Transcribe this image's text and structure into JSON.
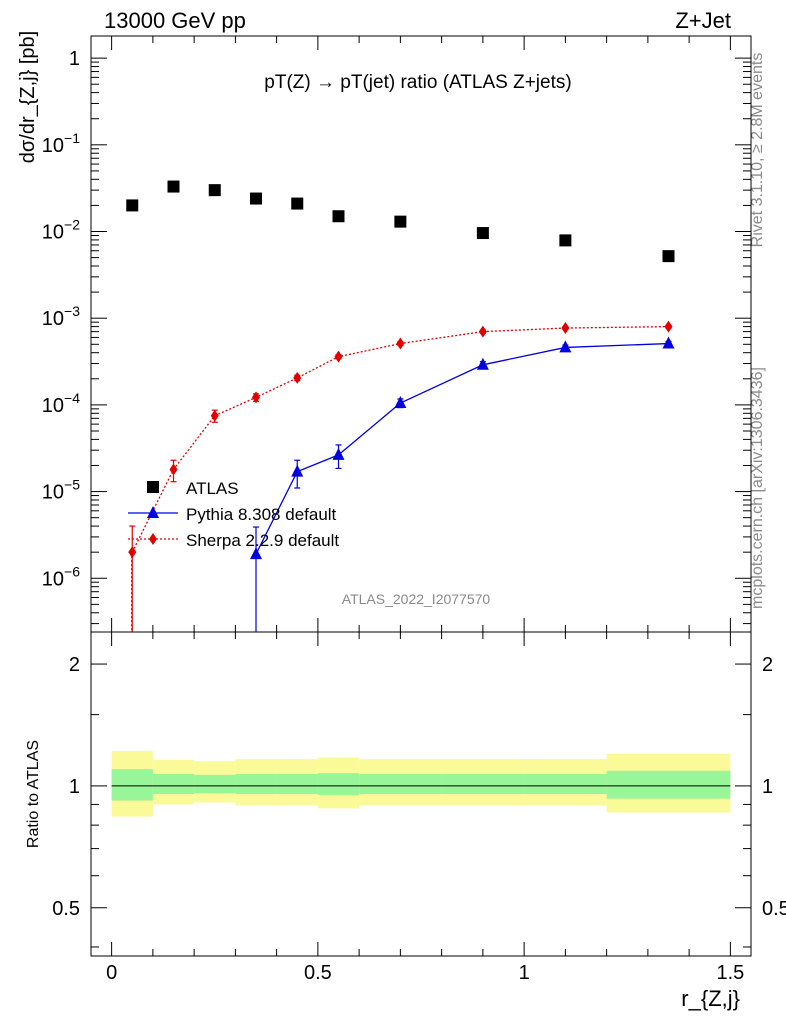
{
  "header": {
    "left": "13000 GeV pp",
    "right": "Z+Jet"
  },
  "side": {
    "rivet": "Rivet 3.1.10, ≥ 2.8M events",
    "mcplots": "mcplots.cern.ch [arXiv:1306.3436]"
  },
  "chart_data": {
    "type": "scatter",
    "title": "pT(Z) → pT(jet) ratio (ATLAS Z+jets)",
    "watermark": "ATLAS_2022_I2077570",
    "xlabel": "r_{Z,j}",
    "ylabel": "dσ/dr_{Z,j} [pb]",
    "ratio_ylabel": "Ratio to ATLAS",
    "xlim": [
      -0.05,
      1.55
    ],
    "ylim": [
      2.4e-07,
      1.8
    ],
    "yscale": "log",
    "ratio_ylim": [
      0.38,
      2.4
    ],
    "ratio_yscale": "log",
    "x_ticks": [
      "0",
      "0.5",
      "1",
      "1.5"
    ],
    "y_ticks": [
      "1",
      "10^-1",
      "10^-2",
      "10^-3",
      "10^-4",
      "10^-5",
      "10^-6"
    ],
    "ratio_ticks": [
      "2",
      "1",
      "0.5"
    ],
    "legend_position": "bottom-left",
    "series": [
      {
        "name": "ATLAS",
        "color": "#000000",
        "marker": "square",
        "x": [
          0.05,
          0.15,
          0.25,
          0.35,
          0.45,
          0.55,
          0.7,
          0.9,
          1.1,
          1.35
        ],
        "y": [
          0.02,
          0.033,
          0.03,
          0.024,
          0.021,
          0.015,
          0.013,
          0.0096,
          0.0079,
          0.0052
        ]
      },
      {
        "name": "Pythia 8.308 default",
        "color": "#0000e0",
        "marker": "triangle",
        "line": "solid",
        "x": [
          0.35,
          0.45,
          0.55,
          0.7,
          0.9,
          1.1,
          1.35
        ],
        "y": [
          1.9e-06,
          1.7e-05,
          2.65e-05,
          0.000105,
          0.00029,
          0.00046,
          0.00051
        ],
        "err": [
          2e-06,
          6e-06,
          8e-06,
          1.2e-05,
          2.5e-05,
          3e-05,
          3e-05
        ]
      },
      {
        "name": "Sherpa 2.2.9 default",
        "color": "#e00000",
        "marker": "diamond",
        "line": "dotted",
        "x": [
          0.05,
          0.15,
          0.25,
          0.35,
          0.45,
          0.55,
          0.7,
          0.9,
          1.1,
          1.35
        ],
        "y": [
          2e-06,
          1.8e-05,
          7.5e-05,
          0.000122,
          0.000205,
          0.00036,
          0.00051,
          0.0007,
          0.00077,
          0.0008
        ],
        "err": [
          2e-06,
          5e-06,
          1.2e-05,
          1.2e-05,
          1.5e-05,
          2e-05,
          2.5e-05,
          3e-05,
          3e-05,
          3e-05
        ]
      }
    ],
    "ratio_bands": {
      "bins": [
        [
          0.0,
          0.1
        ],
        [
          0.1,
          0.2
        ],
        [
          0.2,
          0.3
        ],
        [
          0.3,
          0.4
        ],
        [
          0.4,
          0.5
        ],
        [
          0.5,
          0.6
        ],
        [
          0.6,
          0.8
        ],
        [
          0.8,
          1.0
        ],
        [
          1.0,
          1.2
        ],
        [
          1.2,
          1.5
        ]
      ],
      "inner_lo": [
        0.92,
        0.955,
        0.96,
        0.955,
        0.955,
        0.95,
        0.955,
        0.955,
        0.955,
        0.93
      ],
      "inner_hi": [
        1.1,
        1.07,
        1.065,
        1.07,
        1.07,
        1.075,
        1.07,
        1.07,
        1.07,
        1.09
      ],
      "outer_lo": [
        0.84,
        0.9,
        0.91,
        0.895,
        0.895,
        0.88,
        0.895,
        0.895,
        0.895,
        0.86
      ],
      "outer_hi": [
        1.22,
        1.16,
        1.15,
        1.165,
        1.165,
        1.175,
        1.165,
        1.165,
        1.165,
        1.2
      ],
      "inner_color": "#98f598",
      "outer_color": "#fafa98"
    }
  }
}
